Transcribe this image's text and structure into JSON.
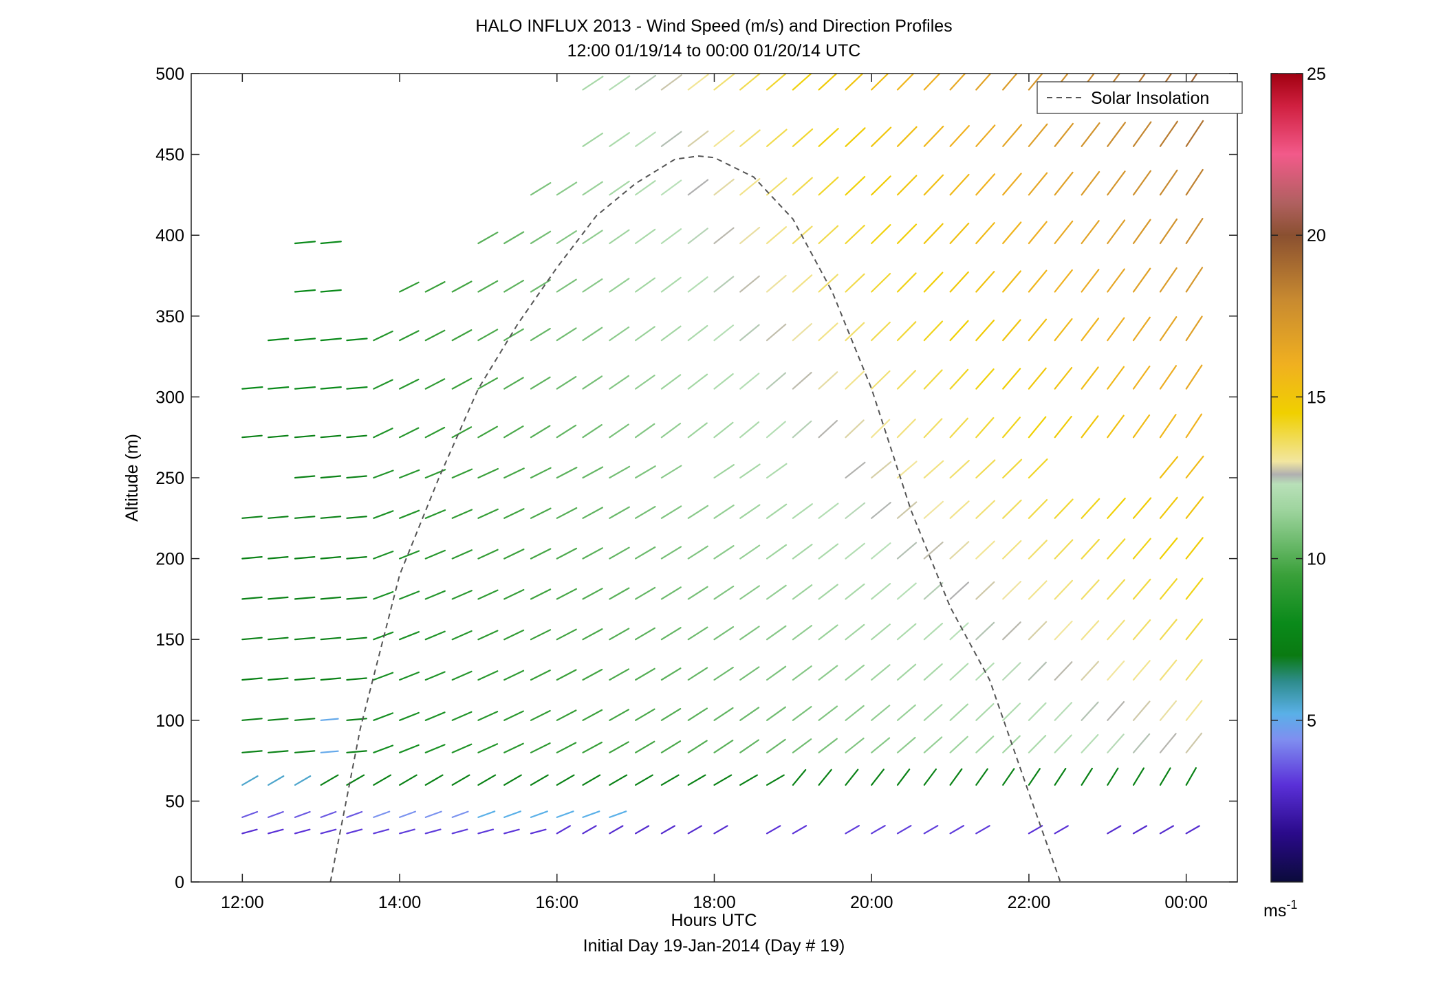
{
  "chart_data": {
    "type": "scatter",
    "subtype": "wind_barb_profile",
    "title": "HALO INFLUX 2013 - Wind Speed (m/s) and Direction Profiles",
    "subtitle": "12:00 01/19/14 to 00:00 01/20/14  UTC",
    "xlabel": "Hours UTC",
    "xlabel2": "Initial Day 19-Jan-2014 (Day # 19)",
    "ylabel": "Altitude (m)",
    "x_ticks": [
      "12:00",
      "14:00",
      "16:00",
      "18:00",
      "20:00",
      "22:00",
      "00:00"
    ],
    "x_tick_hours": [
      12,
      14,
      16,
      18,
      20,
      22,
      24
    ],
    "xlim": [
      11.35,
      24.65
    ],
    "y_ticks": [
      0,
      50,
      100,
      150,
      200,
      250,
      300,
      350,
      400,
      450,
      500
    ],
    "ylim": [
      0,
      500
    ],
    "grid": false,
    "legend": {
      "position": "top-right",
      "entries": [
        "Solar Insolation"
      ]
    },
    "colorbar": {
      "unit_base": "ms",
      "unit_exp": "-1",
      "ticks": [
        5,
        10,
        15,
        20,
        25
      ],
      "range": [
        0,
        25
      ],
      "stops": [
        [
          0,
          "#0b0b3b"
        ],
        [
          1.5,
          "#2a0a8a"
        ],
        [
          3,
          "#5a30d8"
        ],
        [
          4.4,
          "#7f8ef0"
        ],
        [
          5.2,
          "#5ab0e8"
        ],
        [
          6.2,
          "#2e8c8c"
        ],
        [
          7,
          "#0a7a12"
        ],
        [
          8,
          "#0a8a1a"
        ],
        [
          9.5,
          "#3aa03a"
        ],
        [
          11.5,
          "#9ed49e"
        ],
        [
          12.3,
          "#b8e0b8"
        ],
        [
          12.6,
          "#b0b0b0"
        ],
        [
          13,
          "#f2e6a0"
        ],
        [
          14.5,
          "#f0d000"
        ],
        [
          16,
          "#f0b020"
        ],
        [
          18,
          "#c88a30"
        ],
        [
          20,
          "#8a5030"
        ],
        [
          21,
          "#b06060"
        ],
        [
          22.5,
          "#f25a8a"
        ],
        [
          24,
          "#d02040"
        ],
        [
          25,
          "#a00010"
        ]
      ]
    },
    "solar_insolation": {
      "style": "dashed",
      "color": "#555555",
      "hours": [
        13.12,
        13.5,
        14,
        14.5,
        15,
        15.5,
        16,
        16.5,
        17,
        17.5,
        17.8,
        18,
        18.5,
        19,
        19.5,
        20,
        20.5,
        21,
        21.5,
        22,
        22.4
      ],
      "altitude": [
        0,
        95,
        190,
        250,
        305,
        345,
        380,
        412,
        432,
        447,
        449,
        448,
        436,
        410,
        365,
        305,
        230,
        170,
        125,
        55,
        0
      ]
    },
    "wind": {
      "hours": [
        12,
        12.33,
        12.67,
        13,
        13.33,
        13.67,
        14,
        14.33,
        14.67,
        15,
        15.33,
        15.67,
        16,
        16.33,
        16.67,
        17,
        17.33,
        17.67,
        18,
        18.33,
        18.67,
        19,
        19.33,
        19.67,
        20,
        20.33,
        20.67,
        21,
        21.33,
        21.67,
        22,
        22.33,
        22.67,
        23,
        23.33,
        23.67,
        24
      ],
      "levels": [
        30,
        40,
        60,
        80,
        100,
        125,
        150,
        175,
        200,
        225,
        250,
        275,
        305,
        335,
        365,
        395,
        425,
        455,
        490
      ],
      "note": "direction (deg) and speed (m/s) by level"
    }
  }
}
